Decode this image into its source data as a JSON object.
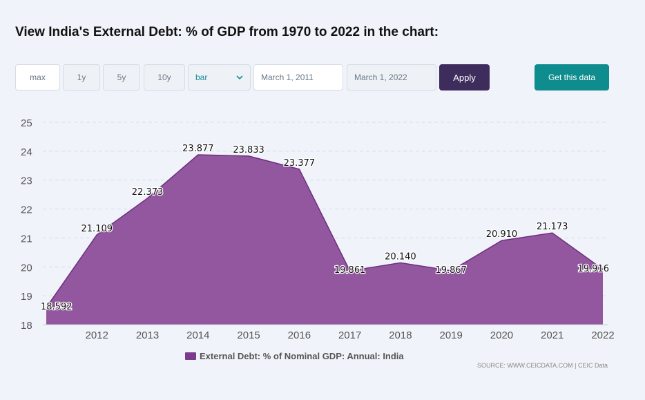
{
  "header": {
    "title": "View India's External Debt: % of GDP from 1970 to 2022 in the chart:"
  },
  "controls": {
    "max_label": "max",
    "one_year_label": "1y",
    "five_year_label": "5y",
    "ten_year_label": "10y",
    "chart_type_value": "bar",
    "start_date": "March 1, 2011",
    "end_date": "March 1, 2022",
    "apply_label": "Apply",
    "get_data_label": "Get this data"
  },
  "colors": {
    "area_fill": "#8a4a97",
    "area_line": "#6e2f7e",
    "apply_bg": "#3d2c5c",
    "get_data_bg": "#0f8c8e"
  },
  "chart_data": {
    "type": "area",
    "x": [
      2011,
      2012,
      2013,
      2014,
      2015,
      2016,
      2017,
      2018,
      2019,
      2020,
      2021,
      2022
    ],
    "x_tick_labels": [
      "2012",
      "2013",
      "2014",
      "2015",
      "2016",
      "2017",
      "2018",
      "2019",
      "2020",
      "2021",
      "2022"
    ],
    "y_tick_labels": [
      "18",
      "19",
      "20",
      "21",
      "22",
      "23",
      "24",
      "25"
    ],
    "series": [
      {
        "name": "External Debt: % of Nominal GDP: Annual: India",
        "values": [
          18.592,
          21.109,
          22.373,
          23.877,
          23.833,
          23.377,
          19.861,
          20.14,
          19.867,
          20.91,
          21.173,
          19.916
        ],
        "value_labels": [
          "18.592",
          "21.109",
          "22.373",
          "23.877",
          "23.833",
          "23.377",
          "19.861",
          "20.140",
          "19.867",
          "20.910",
          "21.173",
          "19.916"
        ]
      }
    ],
    "ylim": [
      18,
      25
    ],
    "grid": "horizontal dashed",
    "legend_position": "bottom-center"
  },
  "footer": {
    "source": "SOURCE: WWW.CEICDATA.COM | CEIC Data"
  }
}
